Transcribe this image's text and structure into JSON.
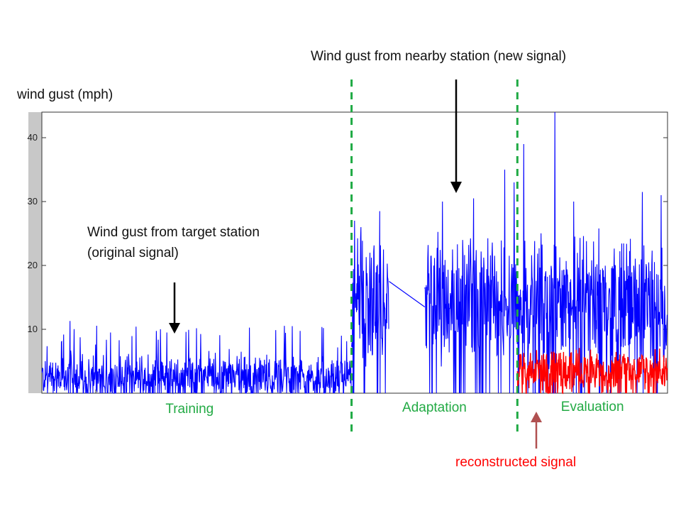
{
  "chart_data": {
    "type": "line",
    "title": "",
    "ylabel": "wind gust (mph)",
    "xlabel": "",
    "ylim": [
      0,
      44
    ],
    "yticks": [
      10,
      20,
      30,
      40
    ],
    "grid": false,
    "x_range": [
      0,
      1000
    ],
    "phases": [
      {
        "name": "Training",
        "x_start": 0,
        "x_end": 495
      },
      {
        "name": "Adaptation",
        "x_start": 495,
        "x_end": 760
      },
      {
        "name": "Evaluation",
        "x_start": 760,
        "x_end": 1000
      }
    ],
    "phase_boundaries": [
      495,
      760
    ],
    "series": [
      {
        "key": "original",
        "color": "#0000ff",
        "segments": [
          {
            "x_start": 0,
            "x_end": 495,
            "mean": 2.5,
            "spread": 2.5,
            "spike_max": 11.3,
            "spikes": [
              [
                45,
                11.3
              ],
              [
                110,
                9.5
              ],
              [
                200,
                9.5
              ],
              [
                400,
                10.5
              ],
              [
                450,
                10.2
              ]
            ]
          }
        ]
      },
      {
        "key": "new",
        "color": "#0000ff",
        "segments": [
          {
            "x_start": 495,
            "x_end": 555,
            "mean": 14,
            "spread": 7,
            "spikes": [
              [
                500,
                27
              ],
              [
                540,
                28.5
              ],
              [
                510,
                26
              ]
            ]
          },
          {
            "x_start": 555,
            "x_end": 612,
            "interpolated": true,
            "from": 17.5,
            "to": 13.5
          },
          {
            "x_start": 612,
            "x_end": 760,
            "mean": 15,
            "spread": 7,
            "spikes": [
              [
                640,
                30
              ],
              [
                690,
                30.5
              ],
              [
                740,
                35
              ],
              [
                755,
                33
              ]
            ]
          },
          {
            "x_start": 760,
            "x_end": 1000,
            "mean": 14,
            "spread": 8,
            "spikes": [
              [
                770,
                39
              ],
              [
                820,
                44
              ],
              [
                850,
                30
              ],
              [
                960,
                31.5
              ],
              [
                990,
                31
              ]
            ]
          }
        ]
      },
      {
        "key": "reconstructed",
        "color": "#ff0000",
        "segments": [
          {
            "x_start": 760,
            "x_end": 1000,
            "mean": 3.5,
            "spread": 2.5,
            "spike_max": 7
          }
        ]
      }
    ],
    "annotations": {
      "new_signal": "Wind gust from nearby station (new signal)",
      "original_signal_line1": "Wind gust from target station",
      "original_signal_line2": "(original signal)",
      "reconstructed_signal": "reconstructed signal"
    },
    "colors": {
      "signal": "#0000ff",
      "reconstructed": "#ff0000",
      "phase_text": "#22aa44",
      "divider": "#1faa44",
      "arrow_black": "#000000",
      "arrow_red": "#b05050",
      "axis_gray_band": "#c8c8c8"
    }
  }
}
